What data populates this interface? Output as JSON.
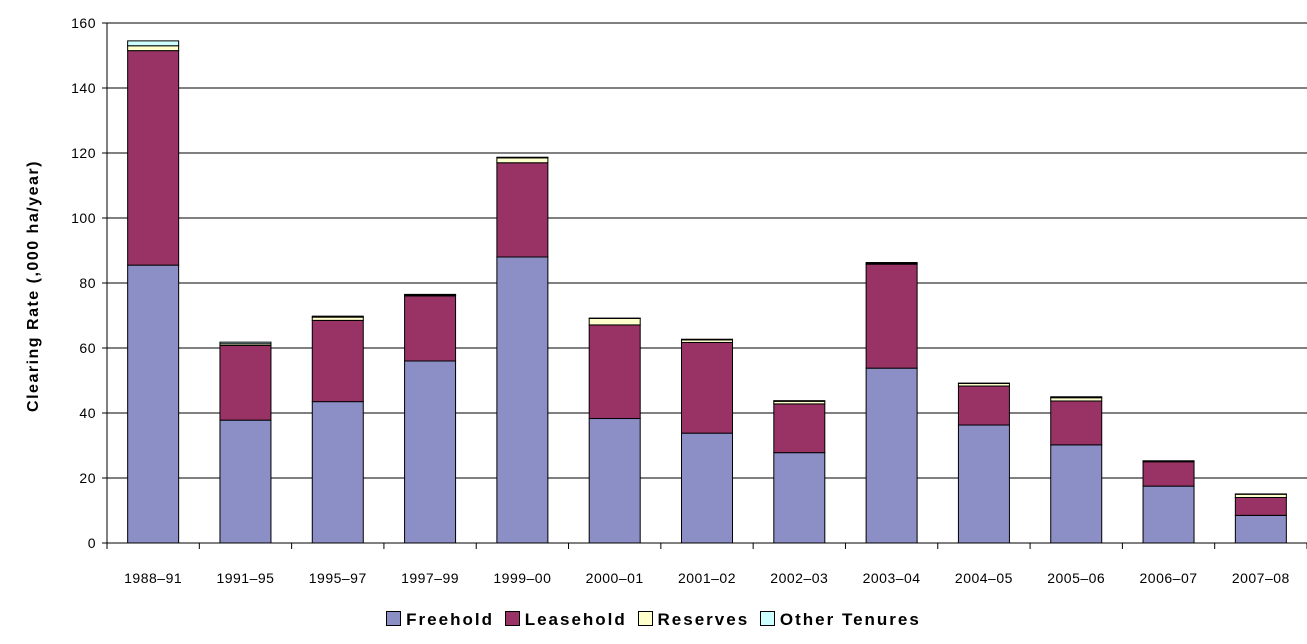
{
  "chart_data": {
    "type": "bar",
    "stacked": true,
    "title": "",
    "xlabel": "",
    "ylabel": "Clearing Rate (,000 ha/year)",
    "ylim": [
      0,
      160
    ],
    "yticks": [
      0,
      20,
      40,
      60,
      80,
      100,
      120,
      140,
      160
    ],
    "grid": true,
    "legend_position": "bottom",
    "categories": [
      "1988–91",
      "1991–95",
      "1995–97",
      "1997–99",
      "1999–00",
      "2000–01",
      "2001–02",
      "2002–03",
      "2003–04",
      "2004–05",
      "2005–06",
      "2006–07",
      "2007–08"
    ],
    "series": [
      {
        "name": "Freehold",
        "color": "#8c8fc6",
        "values": [
          85.5,
          37.8,
          43.5,
          56,
          88,
          38.3,
          33.8,
          27.8,
          53.8,
          36.3,
          30.2,
          17.5,
          8.5
        ]
      },
      {
        "name": "Leasehold",
        "color": "#993366",
        "values": [
          66,
          23,
          25,
          20,
          29,
          28.8,
          27.9,
          15,
          32,
          12,
          13.5,
          7.5,
          5.5
        ]
      },
      {
        "name": "Reserves",
        "color": "#ffffcc",
        "values": [
          1.5,
          0.5,
          1,
          0.3,
          1.5,
          2,
          0.8,
          0.8,
          0.3,
          0.8,
          1,
          0.2,
          1
        ]
      },
      {
        "name": "Other Tenures",
        "color": "#ccffff",
        "values": [
          1.5,
          0.5,
          0.3,
          0.2,
          0.2,
          0.1,
          0.2,
          0.2,
          0.2,
          0.1,
          0.3,
          0.1,
          0.1
        ]
      }
    ]
  }
}
